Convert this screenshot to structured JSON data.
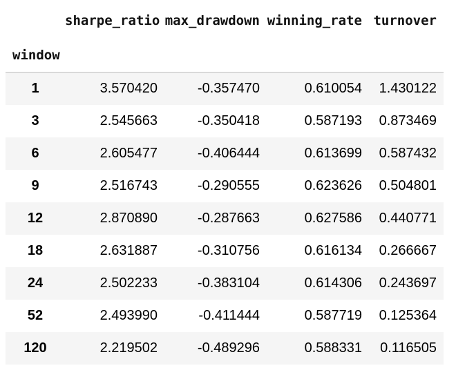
{
  "table": {
    "index_name": "window",
    "columns": [
      "sharpe_ratio",
      "max_drawdown",
      "winning_rate",
      "turnover"
    ],
    "rows": [
      {
        "index": "1",
        "values": [
          "3.570420",
          "-0.357470",
          "0.610054",
          "1.430122"
        ]
      },
      {
        "index": "3",
        "values": [
          "2.545663",
          "-0.350418",
          "0.587193",
          "0.873469"
        ]
      },
      {
        "index": "6",
        "values": [
          "2.605477",
          "-0.406444",
          "0.613699",
          "0.587432"
        ]
      },
      {
        "index": "9",
        "values": [
          "2.516743",
          "-0.290555",
          "0.623626",
          "0.504801"
        ]
      },
      {
        "index": "12",
        "values": [
          "2.870890",
          "-0.287663",
          "0.627586",
          "0.440771"
        ]
      },
      {
        "index": "18",
        "values": [
          "2.631887",
          "-0.310756",
          "0.616134",
          "0.266667"
        ]
      },
      {
        "index": "24",
        "values": [
          "2.502233",
          "-0.383104",
          "0.614306",
          "0.243697"
        ]
      },
      {
        "index": "52",
        "values": [
          "2.493990",
          "-0.411444",
          "0.587719",
          "0.125364"
        ]
      },
      {
        "index": "120",
        "values": [
          "2.219502",
          "-0.489296",
          "0.588331",
          "0.116505"
        ]
      }
    ]
  }
}
